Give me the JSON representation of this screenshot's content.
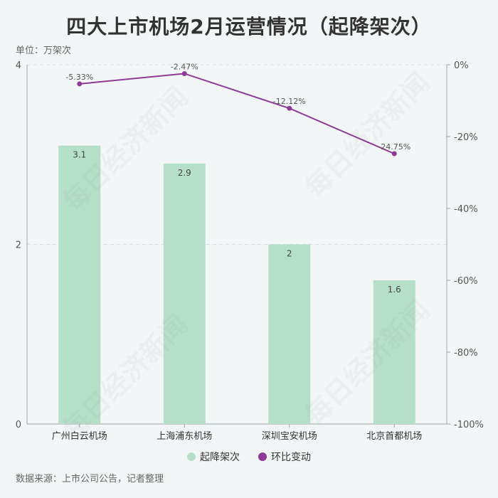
{
  "title": "四大上市机场2月运营情况（起降架次）",
  "unit_label": "单位：万架次",
  "source": "数据来源：上市公司公告，记者整理",
  "watermark": "每日经济新闻",
  "colors": {
    "bar": "#b5dfc9",
    "line": "#8e3a96",
    "grid": "#d9dfe2",
    "axis": "#9aa5aa"
  },
  "legend": [
    {
      "label": "起降架次",
      "color": "#b5dfc9"
    },
    {
      "label": "环比变动",
      "color": "#8e3a96"
    }
  ],
  "chart_data": {
    "type": "bar",
    "categories": [
      "广州白云机场",
      "上海浦东机场",
      "深圳宝安机场",
      "北京首都机场"
    ],
    "series": [
      {
        "name": "起降架次",
        "type": "bar",
        "axis": "left",
        "values": [
          3.1,
          2.9,
          2.0,
          1.6
        ],
        "labels": [
          "3.1",
          "2.9",
          "2",
          "1.6"
        ]
      },
      {
        "name": "环比变动",
        "type": "line",
        "axis": "right",
        "values": [
          -5.33,
          -2.47,
          -12.12,
          -24.75
        ],
        "labels": [
          "-5.33%",
          "-2.47%",
          "-12.12%",
          "-24.75%"
        ]
      }
    ],
    "y_left": {
      "range": [
        0,
        4
      ],
      "ticks": [
        0,
        2,
        4
      ]
    },
    "y_right": {
      "range": [
        -100,
        0
      ],
      "ticks": [
        0,
        -20,
        -40,
        -60,
        -80,
        -100
      ],
      "tick_labels": [
        "0%",
        "-20%",
        "-40%",
        "-60%",
        "-80%",
        "-100%"
      ]
    },
    "legend_position": "bottom"
  }
}
